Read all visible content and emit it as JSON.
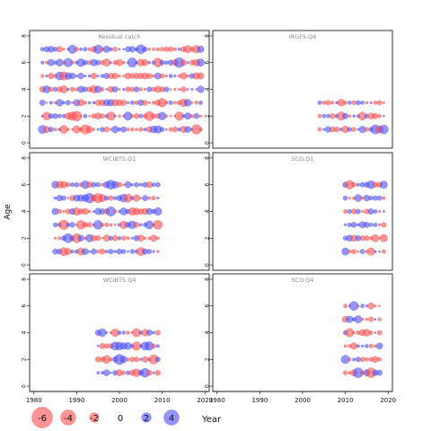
{
  "chart_data": {
    "type": "scatter",
    "xlabel": "Year",
    "ylabel": "Age",
    "x_ticks": [
      1980,
      1990,
      2000,
      2010,
      2020
    ],
    "y_ticks": [
      0,
      2,
      4,
      6,
      8
    ],
    "xlim": [
      1979,
      2021
    ],
    "ylim": [
      -0.4,
      8.4
    ],
    "encoding": {
      "size": "absolute residual",
      "color_negative": "#ff4d4d",
      "color_positive": "#4d4dff"
    },
    "legend": {
      "values": [
        -6,
        -4,
        -2,
        0,
        2,
        4
      ],
      "position": "bottom-left"
    },
    "panels": [
      {
        "title": "Residual catch",
        "years": [
          1982,
          2019
        ],
        "ages": [
          1,
          2,
          3,
          4,
          5,
          6,
          7
        ]
      },
      {
        "title": "IRGFS.Q4",
        "years": [
          2004,
          2019
        ],
        "ages": [
          1,
          2,
          3
        ]
      },
      {
        "title": "WCIBTS.Q1",
        "years": [
          1985,
          2009
        ],
        "ages": [
          1,
          2,
          3,
          4,
          5,
          6
        ]
      },
      {
        "title": "SCO.Q1",
        "years": [
          2010,
          2019
        ],
        "ages": [
          1,
          2,
          3,
          4,
          5,
          6
        ]
      },
      {
        "title": "WCIBTS.Q4",
        "years": [
          1995,
          2009
        ],
        "ages": [
          1,
          2,
          3,
          4
        ]
      },
      {
        "title": "SCO.Q4",
        "years": [
          2010,
          2018
        ],
        "ages": [
          1,
          2,
          3,
          4,
          5,
          6
        ]
      }
    ]
  }
}
